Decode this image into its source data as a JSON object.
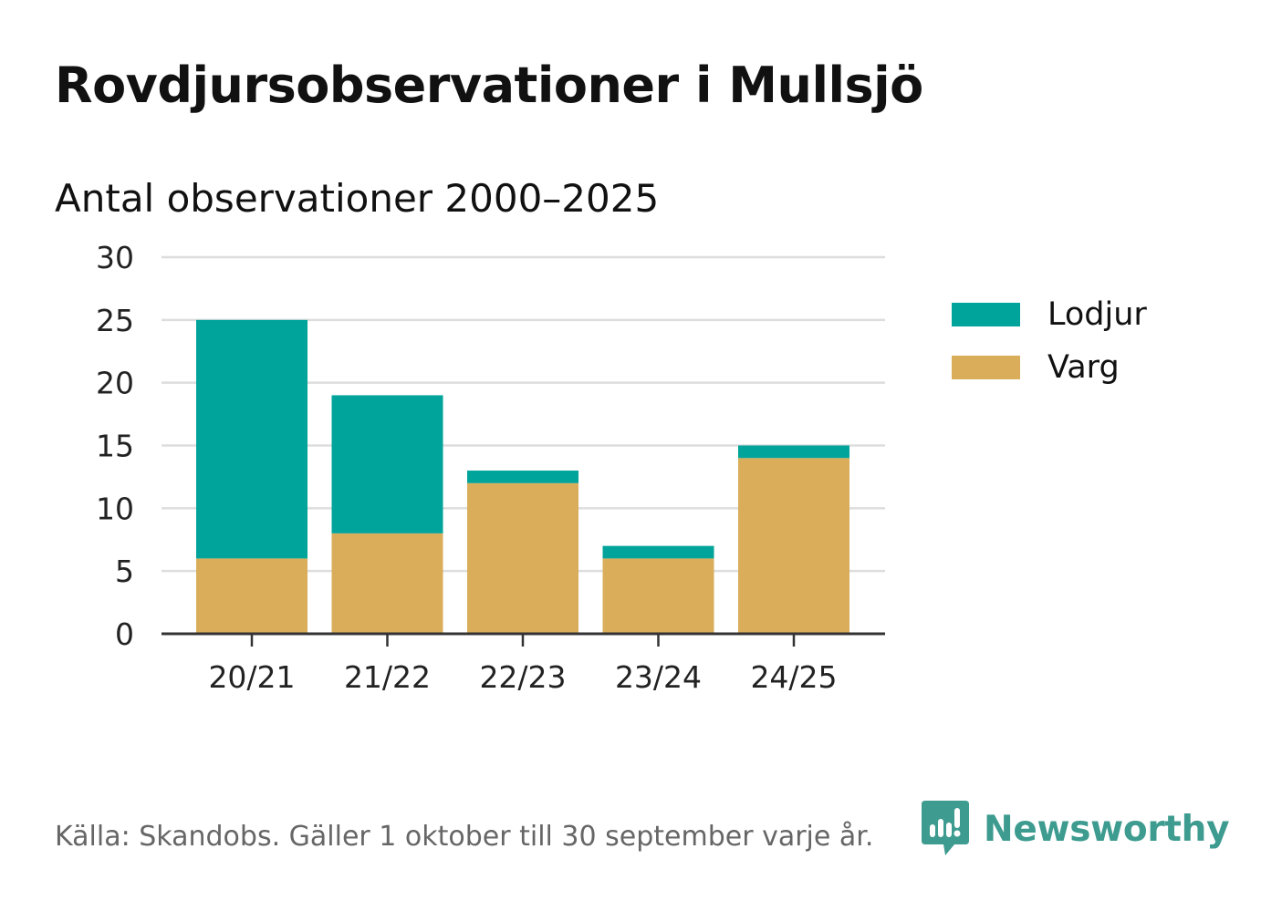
{
  "title": "Rovdjursobservationer i Mullsjö",
  "subtitle": "Antal observationer 2000–2025",
  "footer": "Källa: Skandobs. Gäller 1 oktober till 30 september varje år.",
  "brand": {
    "name": "Newsworthy",
    "icon": "newsworthy-logo-icon",
    "color": "#3d9b8f"
  },
  "colors": {
    "lodjur": "#00a49a",
    "varg": "#d9ad5a",
    "grid": "#dddddd",
    "axis": "#333333",
    "tick_text": "#222222"
  },
  "chart_data": {
    "type": "bar",
    "stacked": true,
    "title": "Rovdjursobservationer i Mullsjö",
    "subtitle": "Antal observationer 2000–2025",
    "xlabel": "",
    "ylabel": "",
    "categories": [
      "20/21",
      "21/22",
      "22/23",
      "23/24",
      "24/25"
    ],
    "series": [
      {
        "name": "Varg",
        "values": [
          6,
          8,
          12,
          6,
          14
        ]
      },
      {
        "name": "Lodjur",
        "values": [
          19,
          11,
          1,
          1,
          1
        ]
      }
    ],
    "ylim": [
      0,
      30
    ],
    "yticks": [
      0,
      5,
      10,
      15,
      20,
      25,
      30
    ],
    "grid": true,
    "legend": {
      "position": "right",
      "order": [
        "Lodjur",
        "Varg"
      ]
    }
  }
}
